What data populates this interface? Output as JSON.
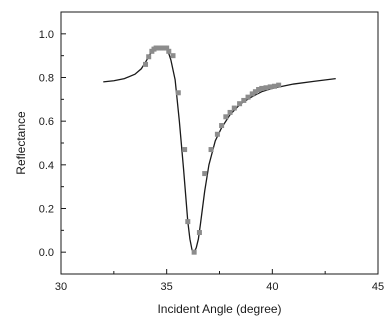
{
  "chart_data": {
    "type": "scatter",
    "xlabel": "Incident Angle (degree)",
    "ylabel": "Reflectance",
    "xlim": [
      30,
      45
    ],
    "ylim": [
      -0.1,
      1.1
    ],
    "xticks": [
      30,
      35,
      40,
      45
    ],
    "yticks": [
      0.0,
      0.2,
      0.4,
      0.6,
      0.8,
      1.0
    ],
    "xtick_labels": [
      "30",
      "35",
      "40",
      "45"
    ],
    "ytick_labels": [
      "0.0",
      "0.2",
      "0.4",
      "0.6",
      "0.8",
      "1.0"
    ],
    "grid": false,
    "legend": "none",
    "series": [
      {
        "kind": "line",
        "color": "#1a1a1a",
        "x": [
          32.0,
          32.5,
          33.0,
          33.5,
          33.8,
          34.0,
          34.2,
          34.35,
          34.5,
          34.7,
          34.9,
          35.05,
          35.2,
          35.4,
          35.6,
          35.8,
          36.0,
          36.1,
          36.2,
          36.3,
          36.4,
          36.5,
          36.6,
          36.8,
          37.0,
          37.3,
          37.6,
          38.0,
          38.5,
          39.0,
          39.5,
          40.0,
          41.0,
          42.0,
          43.0
        ],
        "y": [
          0.78,
          0.785,
          0.795,
          0.815,
          0.84,
          0.87,
          0.905,
          0.925,
          0.932,
          0.934,
          0.933,
          0.925,
          0.88,
          0.79,
          0.6,
          0.38,
          0.14,
          0.06,
          0.01,
          0.0,
          0.02,
          0.06,
          0.13,
          0.28,
          0.4,
          0.51,
          0.57,
          0.63,
          0.68,
          0.71,
          0.735,
          0.75,
          0.77,
          0.783,
          0.795
        ]
      },
      {
        "kind": "markers",
        "color": "#8c8c8c",
        "x": [
          34.0,
          34.15,
          34.3,
          34.4,
          34.5,
          34.6,
          34.7,
          34.8,
          34.9,
          35.0,
          35.1,
          35.3,
          35.55,
          35.85,
          36.0,
          36.3,
          36.55,
          36.8,
          37.1,
          37.4,
          37.6,
          37.8,
          38.0,
          38.2,
          38.45,
          38.65,
          38.85,
          39.05,
          39.2,
          39.35,
          39.5,
          39.7,
          39.9,
          40.1,
          40.3
        ],
        "y": [
          0.86,
          0.895,
          0.92,
          0.93,
          0.935,
          0.935,
          0.935,
          0.935,
          0.935,
          0.935,
          0.92,
          0.9,
          0.73,
          0.47,
          0.14,
          0.0,
          0.09,
          0.36,
          0.47,
          0.54,
          0.58,
          0.62,
          0.64,
          0.66,
          0.68,
          0.695,
          0.71,
          0.725,
          0.735,
          0.745,
          0.75,
          0.753,
          0.757,
          0.76,
          0.765
        ]
      }
    ]
  }
}
